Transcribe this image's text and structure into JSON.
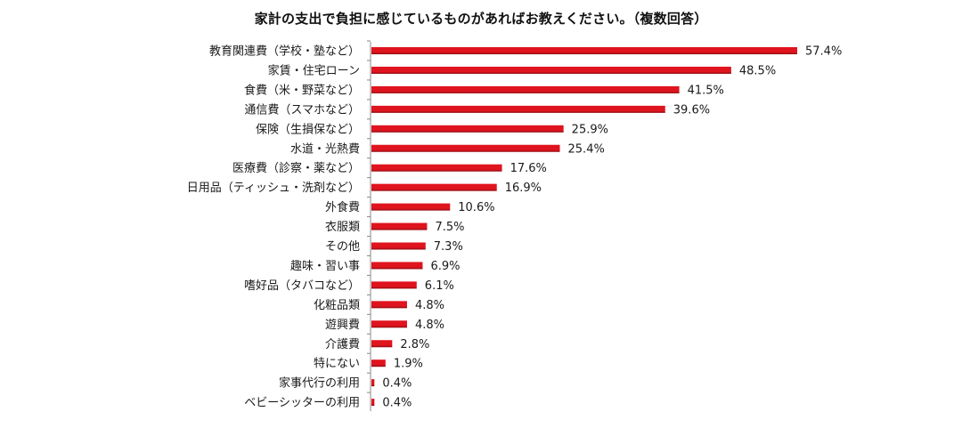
{
  "chart_data": {
    "type": "bar",
    "orientation": "horizontal",
    "title": "家計の支出で負担に感じているものがあればお教えください。（複数回答）",
    "categories": [
      "教育関連費（学校・塾など）",
      "家賃・住宅ローン",
      "食費（米・野菜など）",
      "通信費（スマホなど）",
      "保険（生損保など）",
      "水道・光熱費",
      "医療費（診察・薬など）",
      "日用品（ティッシュ・洗剤など）",
      "外食費",
      "衣服類",
      "その他",
      "趣味・習い事",
      "嗜好品（タバコなど）",
      "化粧品類",
      "遊興費",
      "介護費",
      "特にない",
      "家事代行の利用",
      "ベビーシッターの利用"
    ],
    "values": [
      57.4,
      48.5,
      41.5,
      39.6,
      25.9,
      25.4,
      17.6,
      16.9,
      10.6,
      7.5,
      7.3,
      6.9,
      6.1,
      4.8,
      4.8,
      2.8,
      1.9,
      0.4,
      0.4
    ],
    "data_labels": [
      "57.4%",
      "48.5%",
      "41.5%",
      "39.6%",
      "25.9%",
      "25.4%",
      "17.6%",
      "16.9%",
      "10.6%",
      "7.5%",
      "7.3%",
      "6.9%",
      "6.1%",
      "4.8%",
      "4.8%",
      "2.8%",
      "1.9%",
      "0.4%",
      "0.4%"
    ],
    "unit": "%",
    "xlim": [
      0,
      57.4
    ],
    "grid": false,
    "colors": {
      "bar": "#e0141e",
      "bar_dark": "#8f0a10",
      "axis": "#888888",
      "text": "#1a1a1a"
    }
  }
}
